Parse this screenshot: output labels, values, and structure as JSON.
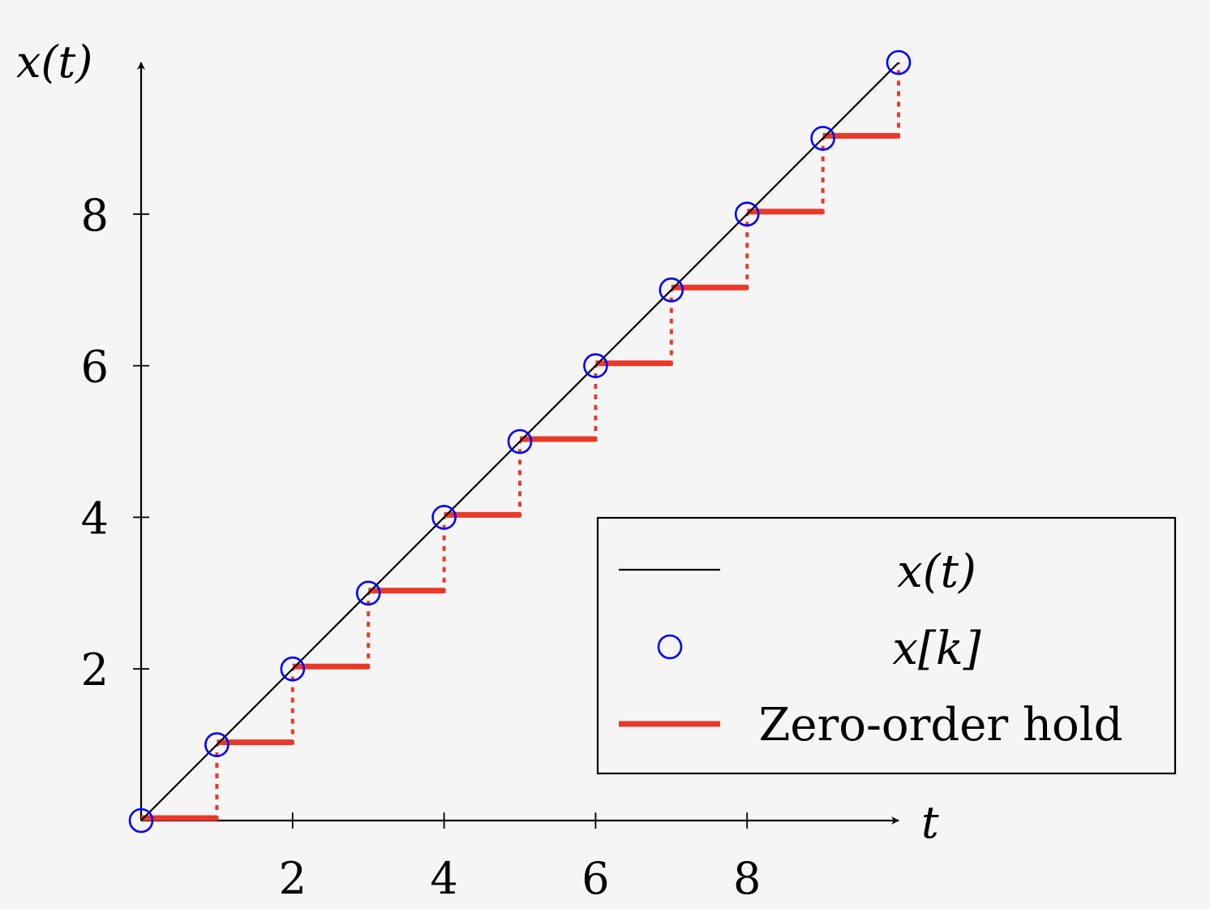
{
  "chart_data": {
    "type": "line",
    "title": "",
    "xlabel": "t",
    "ylabel": "x(t)",
    "xlim": [
      0,
      10
    ],
    "ylim": [
      0,
      10
    ],
    "xticks": [
      2,
      4,
      6,
      8
    ],
    "yticks": [
      2,
      4,
      6,
      8
    ],
    "grid": false,
    "legend_position": "bottom-right",
    "series": [
      {
        "name": "x(t)",
        "kind": "continuous-line",
        "color": "#000000",
        "x": [
          0,
          10
        ],
        "y": [
          0,
          10
        ]
      },
      {
        "name": "x[k]",
        "kind": "samples",
        "marker": "open-circle",
        "color": "#0000ff",
        "x": [
          0,
          1,
          2,
          3,
          4,
          5,
          6,
          7,
          8,
          9,
          10
        ],
        "y": [
          0,
          1,
          2,
          3,
          4,
          5,
          6,
          7,
          8,
          9,
          10
        ]
      },
      {
        "name": "Zero-order hold",
        "kind": "step",
        "color": "#e8392a",
        "x": [
          0,
          1,
          2,
          3,
          4,
          5,
          6,
          7,
          8,
          9
        ],
        "y": [
          0,
          1,
          2,
          3,
          4,
          5,
          6,
          7,
          8,
          9
        ],
        "step_width": 1
      }
    ]
  }
}
